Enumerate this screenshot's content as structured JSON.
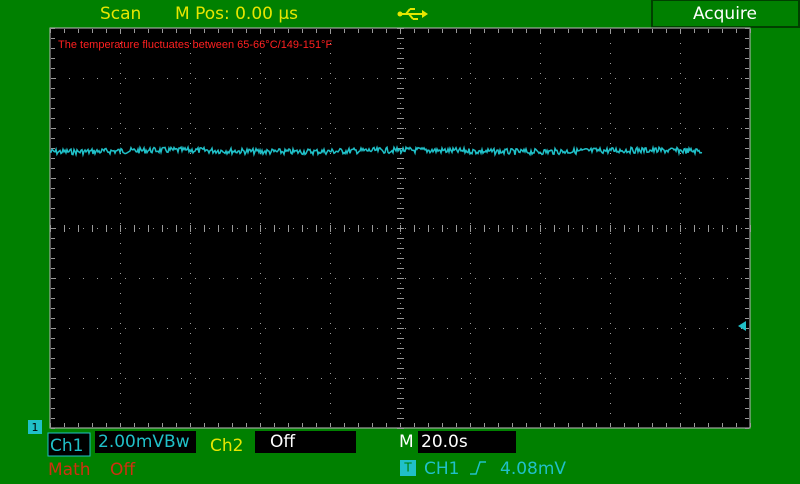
{
  "status_bar": {
    "mode": "Scan",
    "m_pos": "M Pos: 0.00 µs",
    "acquire_button": "Acquire"
  },
  "annotation": "The temperature fluctuates between 65-66°C/149-151°F",
  "channel_bar": {
    "ch1_marker": "1",
    "ch1": "Ch1",
    "ch1_scale": "2.00mVBw",
    "ch2": "Ch2",
    "ch2_state": "Off",
    "m_label": "M",
    "timebase": "20.0s",
    "math": "Math",
    "math_state": "Off",
    "trigger_label": "T",
    "trigger_source": "CH1",
    "trigger_level": "4.08mV"
  }
}
